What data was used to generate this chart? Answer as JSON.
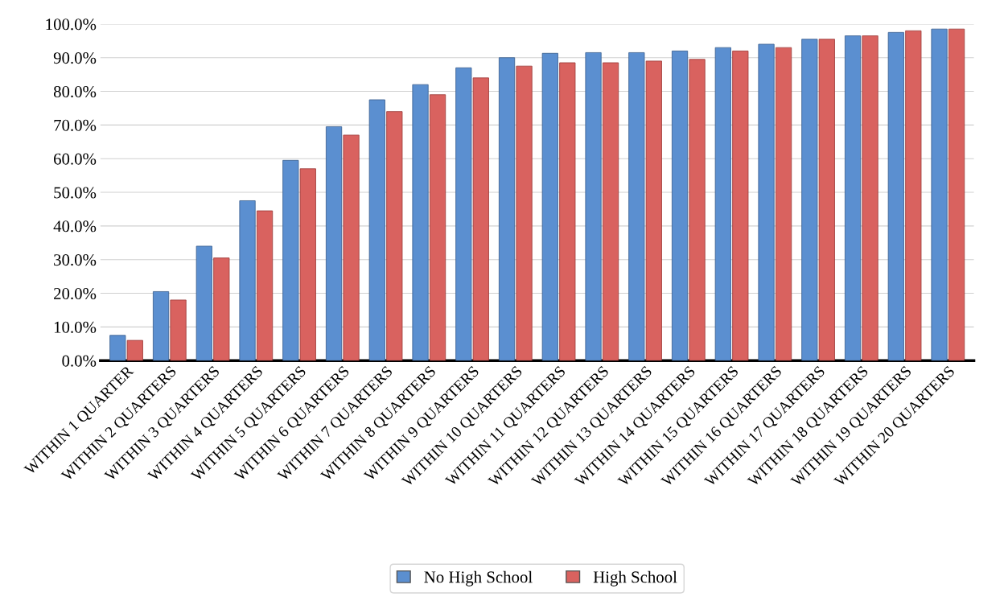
{
  "chart_data": {
    "type": "bar",
    "categories": [
      "WITHIN 1 QUARTER",
      "WITHIN 2 QUARTERS",
      "WITHIN 3 QUARTERS",
      "WITHIN 4 QUARTERS",
      "WITHIN 5 QUARTERS",
      "WITHIN 6 QUARTERS",
      "WITHIN 7 QUARTERS",
      "WITHIN 8 QUARTERS",
      "WITHIN 9 QUARTERS",
      "WITHIN 10 QUARTERS",
      "WITHIN 11 QUARTERS",
      "WITHIN 12 QUARTERS",
      "WITHIN 13 QUARTERS",
      "WITHIN 14 QUARTERS",
      "WITHIN 15 QUARTERS",
      "WITHIN 16 QUARTERS",
      "WITHIN 17 QUARTERS",
      "WITHIN 18 QUARTERS",
      "WITHIN 19 QUARTERS",
      "WITHIN 20 QUARTERS"
    ],
    "series": [
      {
        "name": "No High School",
        "color": "#5b8fd0",
        "values": [
          7.5,
          20.5,
          34,
          47.5,
          59.5,
          69.5,
          77.5,
          82,
          87,
          90,
          91.3,
          91.5,
          91.5,
          92,
          93,
          94,
          95.5,
          96.5,
          97.5,
          98.5
        ]
      },
      {
        "name": "High School",
        "color": "#d9625f",
        "values": [
          6,
          18,
          30.5,
          44.5,
          57,
          67,
          74,
          79,
          84,
          87.5,
          88.5,
          88.5,
          89,
          89.5,
          92,
          93,
          95.5,
          96.5,
          98,
          98.5
        ]
      }
    ],
    "ylim": [
      0,
      100
    ],
    "yticks": [
      {
        "value": 0,
        "label": "0.0%"
      },
      {
        "value": 10,
        "label": "10.0%"
      },
      {
        "value": 20,
        "label": "20.0%"
      },
      {
        "value": 30,
        "label": "30.0%"
      },
      {
        "value": 40,
        "label": "40.0%"
      },
      {
        "value": 50,
        "label": "50.0%"
      },
      {
        "value": 60,
        "label": "60.0%"
      },
      {
        "value": 70,
        "label": "70.0%"
      },
      {
        "value": 80,
        "label": "80.0%"
      },
      {
        "value": 90,
        "label": "90.0%"
      },
      {
        "value": 100,
        "label": "100.0%"
      }
    ],
    "grid": "y",
    "legend": "bottom"
  }
}
